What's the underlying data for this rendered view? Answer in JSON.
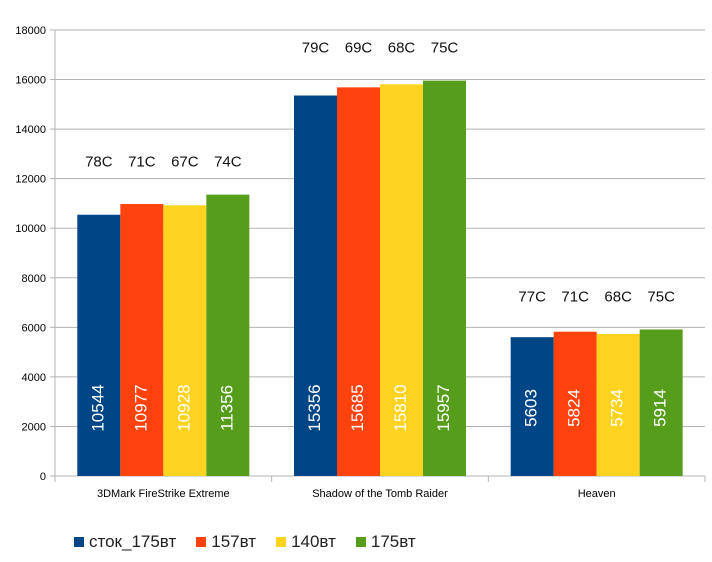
{
  "chart_data": {
    "type": "bar",
    "categories": [
      "3DMark FireStrike Extreme",
      "Shadow of the Tomb Raider",
      "Heaven"
    ],
    "series": [
      {
        "name": "сток_175вт",
        "color": "#004586",
        "values": [
          10544,
          15356,
          5603
        ],
        "temps": [
          "78C",
          "79C",
          "77C"
        ]
      },
      {
        "name": "157вт",
        "color": "#ff420e",
        "values": [
          10977,
          15685,
          5824
        ],
        "temps": [
          "71C",
          "69C",
          "71C"
        ]
      },
      {
        "name": "140вт",
        "color": "#ffd320",
        "values": [
          10928,
          15810,
          5734
        ],
        "temps": [
          "67C",
          "68C",
          "68C"
        ]
      },
      {
        "name": "175вт",
        "color": "#579d1c",
        "values": [
          11356,
          15957,
          5914
        ],
        "temps": [
          "74C",
          "75C",
          "75C"
        ]
      }
    ],
    "ylim": [
      0,
      18000
    ],
    "yticks": [
      0,
      2000,
      4000,
      6000,
      8000,
      10000,
      12000,
      14000,
      16000,
      18000
    ],
    "grid": true,
    "legend_position": "bottom-left",
    "title": "",
    "xlabel": "",
    "ylabel": ""
  }
}
